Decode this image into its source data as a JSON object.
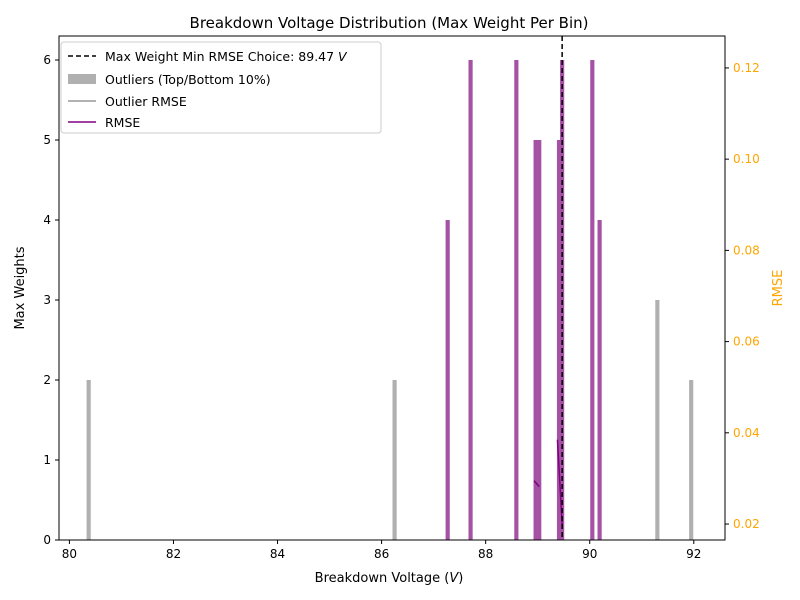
{
  "chart_data": {
    "type": "bar",
    "title": "Breakdown Voltage Distribution (Max Weight Per Bin)",
    "xlabel": "Breakdown Voltage (",
    "xlabel_italic": "V",
    "xlabel_suffix": ")",
    "ylabel": "Max Weights",
    "ylabel_right": "RMSE",
    "xlim": [
      79.8,
      92.6
    ],
    "ylim": [
      0,
      6.3
    ],
    "ylim_right": [
      0.0165,
      0.127
    ],
    "xticks": [
      80,
      82,
      84,
      86,
      88,
      90,
      92
    ],
    "xtick_labels": [
      "80",
      "82",
      "84",
      "86",
      "88",
      "90",
      "92"
    ],
    "yticks": [
      0,
      1,
      2,
      3,
      4,
      5,
      6
    ],
    "ytick_labels": [
      "0",
      "1",
      "2",
      "3",
      "4",
      "5",
      "6"
    ],
    "yticks_right": [
      0.02,
      0.04,
      0.06,
      0.08,
      0.1,
      0.12
    ],
    "ytick_labels_right": [
      "0.02",
      "0.04",
      "0.06",
      "0.08",
      "0.10",
      "0.12"
    ],
    "bar_width": 0.08,
    "outlier_bars": [
      {
        "x": 80.37,
        "value": 2
      },
      {
        "x": 86.25,
        "value": 2
      },
      {
        "x": 91.3,
        "value": 3
      },
      {
        "x": 91.95,
        "value": 2
      }
    ],
    "main_bars": [
      {
        "x": 87.27,
        "value": 4
      },
      {
        "x": 87.71,
        "value": 6
      },
      {
        "x": 88.59,
        "value": 6
      },
      {
        "x": 88.96,
        "value": 5
      },
      {
        "x": 89.03,
        "value": 5
      },
      {
        "x": 89.41,
        "value": 5
      },
      {
        "x": 89.47,
        "value": 6
      },
      {
        "x": 90.05,
        "value": 6
      },
      {
        "x": 90.19,
        "value": 4
      }
    ],
    "rmse_series": [
      {
        "x": 88.93,
        "y": 0.0295
      },
      {
        "x": 89.03,
        "y": 0.0282
      }
    ],
    "rmse_series_2": [
      {
        "x": 89.38,
        "y": 0.0385
      },
      {
        "x": 89.47,
        "y": 0.02
      }
    ],
    "choice_line_x": 89.47,
    "legend": {
      "placement": "upper-left",
      "entries": [
        {
          "label": "Max Weight Min RMSE Choice: 89.47 ",
          "label_italic": "V"
        },
        {
          "label": "Outliers (Top/Bottom 10%)"
        },
        {
          "label": "Outlier RMSE"
        },
        {
          "label": "RMSE"
        }
      ]
    },
    "colors": {
      "outlier_bar": "#b0b0b0",
      "main_bar": "#a552a5",
      "rmse_line": "#800080",
      "outlier_rmse_line": "#999999",
      "choice_line": "#000000",
      "right_axis": "#ffa500"
    }
  }
}
